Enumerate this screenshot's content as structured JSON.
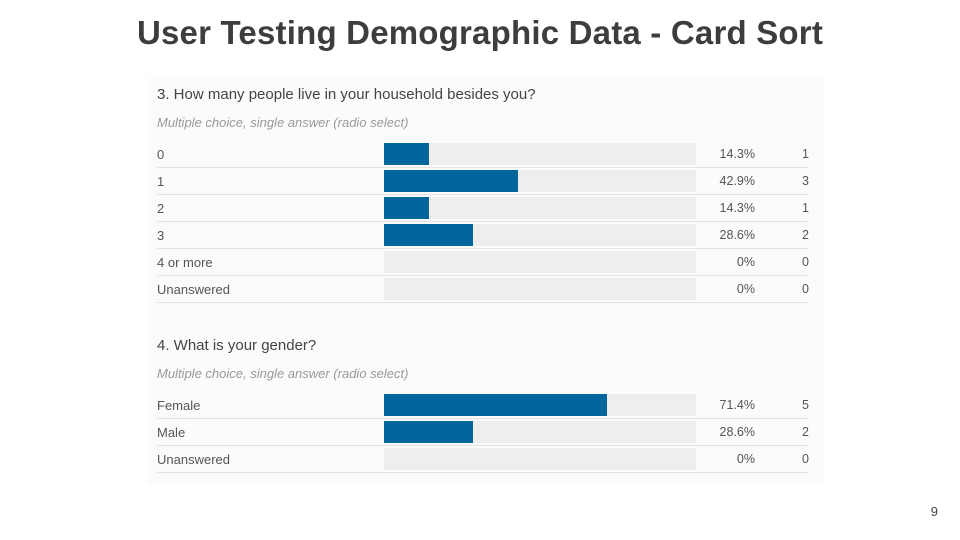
{
  "title": "User Testing Demographic Data - Card Sort",
  "page_number": "9",
  "colors": {
    "bar": "#02659c",
    "track": "#eeeeee"
  },
  "chart_data": [
    {
      "type": "bar",
      "title": "3. How many people live in your household besides you?",
      "subtitle": "Multiple choice, single answer (radio select)",
      "categories": [
        "0",
        "1",
        "2",
        "3",
        "4 or more",
        "Unanswered"
      ],
      "percent_labels": [
        "14.3%",
        "42.9%",
        "14.3%",
        "28.6%",
        "0%",
        "0%"
      ],
      "values": [
        14.3,
        42.9,
        14.3,
        28.6,
        0,
        0
      ],
      "counts": [
        1,
        3,
        1,
        2,
        0,
        0
      ],
      "xlim": [
        0,
        100
      ]
    },
    {
      "type": "bar",
      "title": "4. What is your gender?",
      "subtitle": "Multiple choice, single answer (radio select)",
      "categories": [
        "Female",
        "Male",
        "Unanswered"
      ],
      "percent_labels": [
        "71.4%",
        "28.6%",
        "0%"
      ],
      "values": [
        71.4,
        28.6,
        0
      ],
      "counts": [
        5,
        2,
        0
      ],
      "xlim": [
        0,
        100
      ]
    }
  ]
}
